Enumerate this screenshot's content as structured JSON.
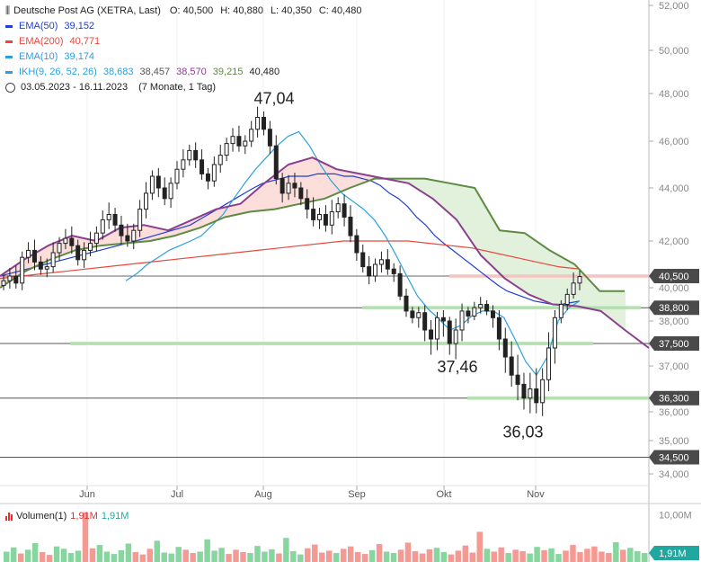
{
  "header": {
    "instrument": "Deutsche Post AG (XETRA, Last)",
    "ohlc": {
      "open": "O: 40,500",
      "high": "H: 40,880",
      "low": "L: 40,350",
      "close": "C: 40,480"
    },
    "indicators": [
      {
        "label": "EMA(50)",
        "values": [
          "39,152"
        ],
        "color": "#1f3fd6"
      },
      {
        "label": "EMA(200)",
        "values": [
          "40,771"
        ],
        "color": "#e8473d"
      },
      {
        "label": "EMA(10)",
        "values": [
          "39,174"
        ],
        "color": "#2c9fe0"
      },
      {
        "label": "IKH(9, 26, 52, 26)",
        "values": [
          "38,683",
          "38,457",
          "38,570",
          "39,215",
          "40,480"
        ],
        "value_colors": [
          "#2c9fe0",
          "#555555",
          "#8b3f8f",
          "#5e8a43",
          "#222222"
        ],
        "color": "#2c9fe0"
      }
    ],
    "period": "03.05.2023 - 16.11.2023",
    "period_note": "(7 Monate, 1 Tag)"
  },
  "volume_legend": {
    "label": "Volumen(1)",
    "value1": "1,91M",
    "value2": "1,91M"
  },
  "chart_data": {
    "type": "candlestick",
    "y_axis": {
      "ylim": [
        33.5,
        52.2
      ],
      "ticks": [
        "52,000",
        "50,000",
        "48,000",
        "46,000",
        "44,000",
        "42,000",
        "40,000",
        "38,000",
        "37,000",
        "36,000",
        "35,000",
        "34,000"
      ],
      "tick_values": [
        52,
        50,
        48,
        46,
        44,
        42,
        40,
        38,
        37,
        36,
        35,
        34
      ]
    },
    "x_axis": {
      "labels": [
        "Jun",
        "Jul",
        "Aug",
        "Sep",
        "Okt",
        "Nov"
      ]
    },
    "horizontal_levels": [
      {
        "value": 40.5,
        "label": "40,500",
        "color": "#666666"
      },
      {
        "value": 38.8,
        "label": "38,800",
        "color": "#555555"
      },
      {
        "value": 37.5,
        "label": "37,500",
        "color": "#555555"
      },
      {
        "value": 36.3,
        "label": "36,300",
        "color": "#555555"
      },
      {
        "value": 34.5,
        "label": "34,500",
        "color": "#555555"
      }
    ],
    "annotations": [
      {
        "text": "47,04",
        "value": 47.04
      },
      {
        "text": "37,46",
        "value": 37.46
      },
      {
        "text": "36,03",
        "value": 36.03
      }
    ],
    "close_series": [
      40.3,
      40.5,
      40.2,
      41.3,
      41.6,
      41.1,
      40.8,
      40.9,
      41.5,
      41.9,
      42.1,
      41.8,
      41.2,
      41.6,
      41.9,
      42.3,
      42.8,
      43.0,
      42.6,
      42.2,
      42.0,
      42.4,
      43.2,
      43.8,
      44.5,
      44.0,
      43.6,
      44.2,
      44.8,
      45.2,
      45.6,
      45.2,
      44.6,
      44.3,
      45.0,
      45.4,
      45.9,
      46.2,
      45.8,
      46.0,
      46.5,
      47.0,
      46.5,
      45.8,
      44.4,
      43.8,
      44.2,
      44.0,
      43.6,
      43.2,
      42.8,
      43.0,
      42.6,
      43.1,
      43.4,
      42.9,
      42.2,
      41.5,
      40.9,
      40.5,
      41.0,
      41.2,
      40.8,
      40.6,
      39.5,
      38.6,
      38.2,
      38.5,
      37.8,
      37.6,
      38.2,
      38.0,
      37.5,
      37.8,
      38.6,
      38.3,
      38.8,
      39.0,
      38.6,
      38.2,
      37.6,
      37.2,
      36.8,
      36.6,
      36.3,
      36.5,
      36.2,
      36.7,
      37.4,
      38.2,
      39.0,
      39.6,
      40.2,
      40.48
    ],
    "series": [
      {
        "name": "EMA(50)",
        "color": "#1f3fd6",
        "values": [
          40.5,
          40.6,
          40.7,
          40.8,
          40.9,
          41.0,
          41.1,
          41.2,
          41.3,
          41.4,
          41.5,
          41.6,
          41.7,
          41.8,
          41.9,
          42.0,
          42.1,
          42.2,
          42.3,
          42.4,
          42.5,
          42.6,
          42.8,
          43.0,
          43.2,
          43.4,
          43.6,
          43.8,
          44.0,
          44.2,
          44.3,
          44.4,
          44.5,
          44.5,
          44.5,
          44.6,
          44.6,
          44.6,
          44.5,
          44.5,
          44.4,
          44.3,
          44.1,
          43.8,
          43.6,
          43.3,
          42.9,
          42.6,
          42.2,
          41.9,
          41.6,
          41.3,
          41.0,
          40.7,
          40.4,
          40.1,
          39.8,
          39.6,
          39.4,
          39.2,
          39.1,
          39.0,
          39.0,
          39.1,
          39.2
        ]
      },
      {
        "name": "EMA(200)",
        "color": "#e8473d",
        "values": [
          40.4,
          40.5,
          40.6,
          40.7,
          40.8,
          40.9,
          41.0,
          41.1,
          41.2,
          41.3,
          41.4,
          41.5,
          41.6,
          41.7,
          41.8,
          41.9,
          42.0,
          42.0,
          42.0,
          42.0,
          41.9,
          41.8,
          41.7,
          41.5,
          41.3,
          41.1,
          40.9,
          40.8
        ]
      },
      {
        "name": "EMA(10)",
        "color": "#2c9fe0",
        "values": [
          40.3,
          40.6,
          41.0,
          41.3,
          41.6,
          41.8,
          42.0,
          42.2,
          42.6,
          43.0,
          43.6,
          44.2,
          44.8,
          45.3,
          45.8,
          46.2,
          46.4,
          45.8,
          45.0,
          44.3,
          43.8,
          43.5,
          43.2,
          42.8,
          42.2,
          41.4,
          40.5,
          39.5,
          38.7,
          38.1,
          37.8,
          37.9,
          38.3,
          38.6,
          38.6,
          38.2,
          37.6,
          37.1,
          36.8,
          37.2,
          38.0,
          38.8,
          39.2
        ]
      },
      {
        "name": "IKH Senkou A",
        "color": "#5e8a43",
        "values": [
          40.0,
          40.7,
          41.2,
          41.6,
          41.8,
          41.9,
          42.0,
          42.2,
          42.5,
          42.9,
          43.1,
          43.2,
          43.4,
          43.6,
          44.0,
          44.4,
          44.4,
          44.4,
          44.2,
          44.0,
          42.4,
          42.3,
          41.6,
          41.0,
          39.8,
          39.8
        ]
      },
      {
        "name": "IKH Senkou B",
        "color": "#8b3f8f",
        "values": [
          40.5,
          41.2,
          41.8,
          42.2,
          42.0,
          42.5,
          42.6,
          42.4,
          42.8,
          43.2,
          43.4,
          44.2,
          45.0,
          45.3,
          44.8,
          44.6,
          44.4,
          44.2,
          43.6,
          42.8,
          41.4,
          40.4,
          39.6,
          39.0,
          38.9,
          38.6,
          37.8,
          37.4
        ]
      }
    ],
    "volume": {
      "ylim": [
        0,
        12
      ],
      "ticks": [
        "10,00M"
      ],
      "tick_values": [
        10
      ],
      "last": "1,91M"
    }
  }
}
